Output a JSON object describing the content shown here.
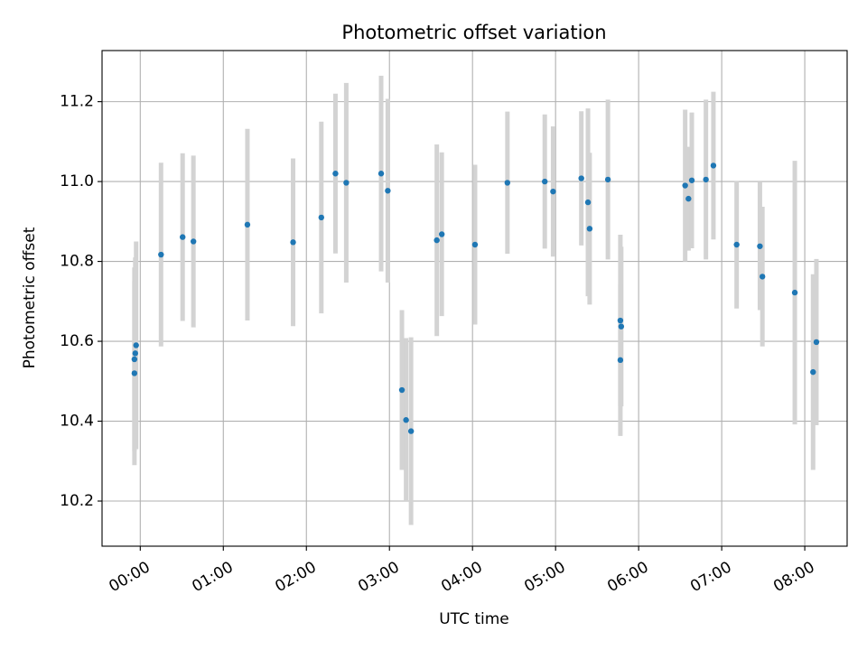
{
  "chart_data": {
    "type": "scatter",
    "title": "Photometric offset variation",
    "xlabel": "UTC time",
    "ylabel": "Photometric offset",
    "x_unit": "hours UTC",
    "xlim": [
      -0.46,
      8.51
    ],
    "ylim": [
      10.087,
      11.328
    ],
    "x_ticks": [
      {
        "value": 0,
        "label": "00:00"
      },
      {
        "value": 1,
        "label": "01:00"
      },
      {
        "value": 2,
        "label": "02:00"
      },
      {
        "value": 3,
        "label": "03:00"
      },
      {
        "value": 4,
        "label": "04:00"
      },
      {
        "value": 5,
        "label": "05:00"
      },
      {
        "value": 6,
        "label": "06:00"
      },
      {
        "value": 7,
        "label": "07:00"
      },
      {
        "value": 8,
        "label": "08:00"
      }
    ],
    "y_ticks": [
      {
        "value": 10.2,
        "label": "10.2"
      },
      {
        "value": 10.4,
        "label": "10.4"
      },
      {
        "value": 10.6,
        "label": "10.6"
      },
      {
        "value": 10.8,
        "label": "10.8"
      },
      {
        "value": 11.0,
        "label": "11.0"
      },
      {
        "value": 11.2,
        "label": "11.2"
      }
    ],
    "grid": true,
    "marker_color": "#1f77b4",
    "errorbar_color": "#d3d3d3",
    "points": [
      {
        "x": -0.07,
        "y": 10.52,
        "err": 0.23
      },
      {
        "x": -0.07,
        "y": 10.555,
        "err": 0.23
      },
      {
        "x": -0.06,
        "y": 10.57,
        "err": 0.24
      },
      {
        "x": -0.05,
        "y": 10.59,
        "err": 0.26
      },
      {
        "x": 0.25,
        "y": 10.817,
        "err": 0.23
      },
      {
        "x": 0.51,
        "y": 10.861,
        "err": 0.21
      },
      {
        "x": 0.64,
        "y": 10.85,
        "err": 0.215
      },
      {
        "x": 1.29,
        "y": 10.892,
        "err": 0.24
      },
      {
        "x": 1.84,
        "y": 10.848,
        "err": 0.21
      },
      {
        "x": 2.18,
        "y": 10.91,
        "err": 0.24
      },
      {
        "x": 2.35,
        "y": 11.02,
        "err": 0.2
      },
      {
        "x": 2.48,
        "y": 10.997,
        "err": 0.25
      },
      {
        "x": 2.9,
        "y": 11.02,
        "err": 0.245
      },
      {
        "x": 2.98,
        "y": 10.977,
        "err": 0.23
      },
      {
        "x": 3.15,
        "y": 10.478,
        "err": 0.2
      },
      {
        "x": 3.2,
        "y": 10.403,
        "err": 0.205
      },
      {
        "x": 3.26,
        "y": 10.375,
        "err": 0.235
      },
      {
        "x": 3.57,
        "y": 10.853,
        "err": 0.24
      },
      {
        "x": 3.63,
        "y": 10.868,
        "err": 0.205
      },
      {
        "x": 4.03,
        "y": 10.842,
        "err": 0.2
      },
      {
        "x": 4.42,
        "y": 10.997,
        "err": 0.178
      },
      {
        "x": 4.87,
        "y": 11.0,
        "err": 0.168
      },
      {
        "x": 4.97,
        "y": 10.975,
        "err": 0.163
      },
      {
        "x": 5.31,
        "y": 11.008,
        "err": 0.168
      },
      {
        "x": 5.39,
        "y": 10.948,
        "err": 0.235
      },
      {
        "x": 5.41,
        "y": 10.882,
        "err": 0.19
      },
      {
        "x": 5.63,
        "y": 11.005,
        "err": 0.2
      },
      {
        "x": 5.78,
        "y": 10.652,
        "err": 0.215
      },
      {
        "x": 5.79,
        "y": 10.637,
        "err": 0.2
      },
      {
        "x": 5.78,
        "y": 10.553,
        "err": 0.19
      },
      {
        "x": 6.56,
        "y": 10.99,
        "err": 0.19
      },
      {
        "x": 6.6,
        "y": 10.957,
        "err": 0.13
      },
      {
        "x": 6.64,
        "y": 11.003,
        "err": 0.17
      },
      {
        "x": 6.81,
        "y": 11.005,
        "err": 0.2
      },
      {
        "x": 6.9,
        "y": 11.04,
        "err": 0.185
      },
      {
        "x": 7.18,
        "y": 10.842,
        "err": 0.16
      },
      {
        "x": 7.46,
        "y": 10.838,
        "err": 0.16
      },
      {
        "x": 7.49,
        "y": 10.762,
        "err": 0.175
      },
      {
        "x": 7.88,
        "y": 10.722,
        "err": 0.33
      },
      {
        "x": 8.1,
        "y": 10.523,
        "err": 0.245
      },
      {
        "x": 8.14,
        "y": 10.598,
        "err": 0.208
      }
    ]
  }
}
